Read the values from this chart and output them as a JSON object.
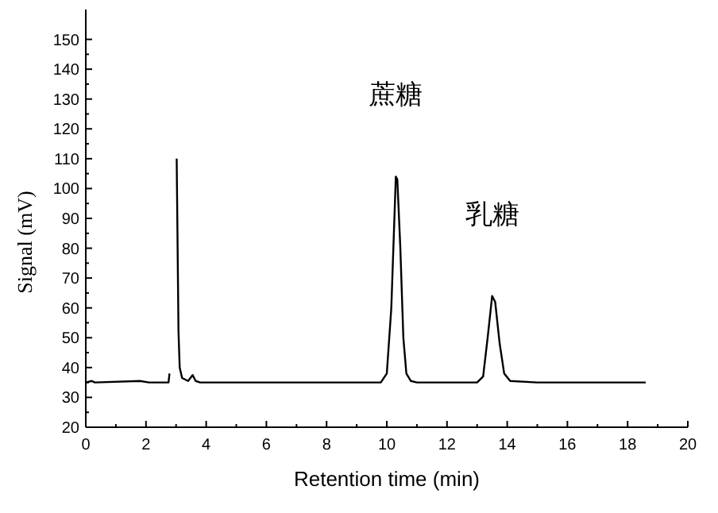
{
  "chart_data": {
    "type": "line",
    "xlabel": "Retention time (min)",
    "ylabel": "Signal (mV)",
    "xlim": [
      0,
      20
    ],
    "ylim": [
      20,
      160
    ],
    "xticks": [
      0,
      {
        "value": 1,
        "label": null
      },
      2,
      {
        "value": 3,
        "label": null
      },
      4,
      {
        "value": 5,
        "label": null
      },
      6,
      {
        "value": 7,
        "label": null
      },
      8,
      {
        "value": 9,
        "label": null
      },
      10,
      {
        "value": 11,
        "label": null
      },
      12,
      {
        "value": 13,
        "label": null
      },
      14,
      {
        "value": 15,
        "label": null
      },
      16,
      {
        "value": 17,
        "label": null
      },
      18,
      {
        "value": 19,
        "label": null
      },
      20
    ],
    "yticks": [
      20,
      {
        "value": 25,
        "label": null
      },
      30,
      {
        "value": 35,
        "label": null
      },
      40,
      {
        "value": 45,
        "label": null
      },
      50,
      {
        "value": 55,
        "label": null
      },
      60,
      {
        "value": 65,
        "label": null
      },
      70,
      {
        "value": 75,
        "label": null
      },
      80,
      {
        "value": 85,
        "label": null
      },
      90,
      {
        "value": 95,
        "label": null
      },
      100,
      {
        "value": 105,
        "label": null
      },
      110,
      {
        "value": 115,
        "label": null
      },
      120,
      {
        "value": 125,
        "label": null
      },
      130,
      {
        "value": 135,
        "label": null
      },
      140,
      {
        "value": 145,
        "label": null
      },
      150
    ],
    "grid": false,
    "marker": "none",
    "line_style": "solid",
    "annotations": [
      {
        "text": "蔗糖",
        "x": 10.3,
        "y": 104
      },
      {
        "text": "乳糖",
        "x": 13.5,
        "y": 64
      }
    ],
    "series": [
      {
        "color": "#000000",
        "x": [
          0,
          0.2,
          0.3,
          1.8,
          2.1,
          2.75,
          2.78,
          2.85,
          3.0,
          3.02,
          3.08,
          3.12,
          3.2,
          3.4,
          3.55,
          3.65,
          3.8,
          9.8,
          10.0,
          10.15,
          10.3,
          10.35,
          10.45,
          10.55,
          10.65,
          10.8,
          11.0,
          13.0,
          13.2,
          13.35,
          13.5,
          13.6,
          13.75,
          13.9,
          14.1,
          15.0,
          18.6
        ],
        "values": [
          35,
          35.5,
          35,
          35.5,
          35,
          35,
          38,
          null,
          null,
          110,
          52,
          40,
          36.5,
          35.5,
          37.5,
          35.5,
          35,
          35,
          38,
          60,
          104,
          103,
          80,
          50,
          38,
          35.5,
          35,
          35,
          37,
          50,
          64,
          62,
          48,
          38,
          35.5,
          35,
          35
        ]
      }
    ]
  }
}
